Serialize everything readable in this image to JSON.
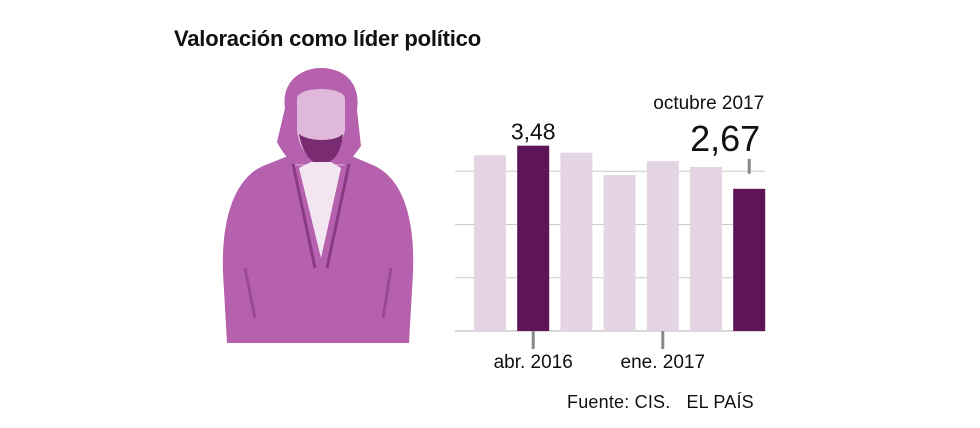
{
  "title": "Valoración como líder político",
  "source": {
    "fuente": "Fuente: CIS.",
    "publisher": "EL PAÍS"
  },
  "colors": {
    "highlight": "#5e1459",
    "muted": "#e5d4e4",
    "grid": "#cccccc",
    "portrait": "#b561ad"
  },
  "chart_data": {
    "type": "bar",
    "title": "Valoración como líder político",
    "categories": [
      "",
      "abr. 2016",
      "",
      "",
      "ene. 2017",
      "",
      "octubre 2017"
    ],
    "values": [
      3.3,
      3.48,
      3.35,
      2.93,
      3.19,
      3.08,
      2.67
    ],
    "highlighted": [
      1,
      6
    ],
    "ylim": [
      0,
      4
    ],
    "grid": true,
    "xtick_labels": [
      {
        "index": 1,
        "label": "abr. 2016"
      },
      {
        "index": 4,
        "label": "ene. 2017"
      }
    ],
    "annotations": [
      {
        "index": 1,
        "value_label": "3,48"
      },
      {
        "index": 6,
        "period_label": "octubre 2017",
        "value_label": "2,67"
      }
    ]
  }
}
